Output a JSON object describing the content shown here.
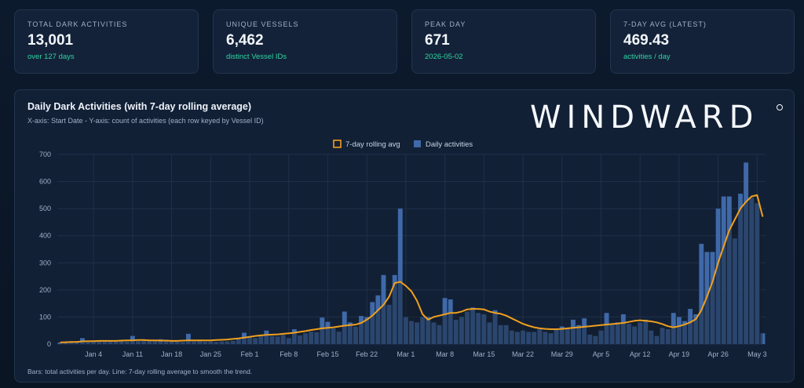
{
  "cards": [
    {
      "label": "TOTAL DARK ACTIVITIES",
      "value": "13,001",
      "sub": "over 127 days"
    },
    {
      "label": "UNIQUE VESSELS",
      "value": "6,462",
      "sub": "distinct Vessel IDs"
    },
    {
      "label": "PEAK DAY",
      "value": "671",
      "sub": "2026-05-02"
    },
    {
      "label": "7-DAY AVG (LATEST)",
      "value": "469.43",
      "sub": "activities / day"
    }
  ],
  "logo": "WINDWARD",
  "footnote": "Bars: total activities per day. Line: 7-day rolling average to smooth the trend.",
  "colors": {
    "bar": "#3f69a8",
    "line": "#f0a01e",
    "grid": "#1f3049"
  },
  "chart_data": {
    "type": "bar",
    "title": "Daily Dark Activities (with 7-day rolling average)",
    "subtitle": "X-axis: Start Date - Y-axis: count of activities (each row keyed by Vessel ID)",
    "legend": [
      {
        "name": "7-day rolling avg",
        "kind": "line"
      },
      {
        "name": "Daily activities",
        "kind": "bar"
      }
    ],
    "legend_position": "top-center",
    "grid": true,
    "ylim": [
      0,
      700
    ],
    "yticks": [
      0,
      100,
      200,
      300,
      400,
      500,
      600,
      700
    ],
    "x_start": "2025-12-29",
    "x_tick_labels": [
      {
        "label": "Jan 4",
        "day": 6
      },
      {
        "label": "Jan 11",
        "day": 13
      },
      {
        "label": "Jan 18",
        "day": 20
      },
      {
        "label": "Jan 25",
        "day": 27
      },
      {
        "label": "Feb 1",
        "day": 34
      },
      {
        "label": "Feb 8",
        "day": 41
      },
      {
        "label": "Feb 15",
        "day": 48
      },
      {
        "label": "Feb 22",
        "day": 55
      },
      {
        "label": "Mar 1",
        "day": 62
      },
      {
        "label": "Mar 8",
        "day": 69
      },
      {
        "label": "Mar 15",
        "day": 76
      },
      {
        "label": "Mar 22",
        "day": 83
      },
      {
        "label": "Mar 29",
        "day": 90
      },
      {
        "label": "Apr 5",
        "day": 97
      },
      {
        "label": "Apr 12",
        "day": 104
      },
      {
        "label": "Apr 19",
        "day": 111
      },
      {
        "label": "Apr 26",
        "day": 118
      },
      {
        "label": "May 3",
        "day": 125
      }
    ],
    "series": [
      {
        "name": "Daily activities",
        "values": [
          6,
          9,
          8,
          10,
          22,
          12,
          10,
          10,
          11,
          10,
          11,
          12,
          10,
          30,
          12,
          14,
          15,
          12,
          18,
          16,
          10,
          9,
          8,
          38,
          10,
          12,
          9,
          10,
          8,
          10,
          10,
          12,
          20,
          42,
          28,
          22,
          32,
          50,
          30,
          28,
          34,
          22,
          55,
          32,
          40,
          46,
          44,
          98,
          82,
          58,
          46,
          120,
          80,
          64,
          104,
          100,
          155,
          180,
          255,
          145,
          255,
          500,
          100,
          85,
          80,
          100,
          100,
          80,
          70,
          170,
          165,
          90,
          100,
          120,
          135,
          115,
          110,
          80,
          125,
          70,
          70,
          50,
          45,
          50,
          45,
          45,
          55,
          45,
          40,
          55,
          65,
          60,
          90,
          70,
          95,
          35,
          30,
          50,
          115,
          75,
          80,
          110,
          75,
          65,
          80,
          90,
          50,
          30,
          60,
          55,
          115,
          100,
          85,
          130,
          110,
          370,
          340,
          340,
          500,
          545,
          545,
          390,
          555,
          670,
          540,
          520,
          40
        ]
      },
      {
        "name": "7-day rolling avg",
        "values": [
          6,
          7,
          8,
          8,
          10,
          11,
          11,
          12,
          12,
          12,
          12,
          13,
          14,
          14,
          15,
          15,
          14,
          14,
          13,
          13,
          12,
          12,
          13,
          14,
          14,
          14,
          14,
          14,
          15,
          16,
          17,
          19,
          21,
          24,
          27,
          30,
          32,
          34,
          35,
          36,
          38,
          40,
          42,
          45,
          48,
          52,
          55,
          58,
          60,
          62,
          65,
          68,
          70,
          72,
          78,
          90,
          105,
          125,
          145,
          175,
          225,
          230,
          215,
          195,
          160,
          110,
          90,
          100,
          105,
          110,
          115,
          115,
          120,
          128,
          130,
          130,
          128,
          120,
          115,
          112,
          105,
          95,
          85,
          75,
          68,
          62,
          58,
          56,
          55,
          55,
          56,
          58,
          60,
          62,
          64,
          66,
          68,
          70,
          72,
          74,
          76,
          78,
          82,
          86,
          88,
          86,
          84,
          80,
          74,
          66,
          62,
          66,
          72,
          80,
          92,
          125,
          175,
          230,
          300,
          360,
          420,
          460,
          500,
          525,
          545,
          550,
          470
        ]
      }
    ]
  }
}
